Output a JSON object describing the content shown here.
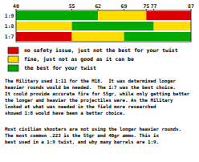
{
  "chart_data": {
    "type": "bar",
    "orientation": "horizontal",
    "categories": [
      "1:9",
      "1:8",
      "1:7"
    ],
    "segments": [
      [
        {
          "start": 40,
          "end": 62,
          "color": "#00aa00"
        },
        {
          "start": 62,
          "end": 75,
          "color": "#ffdd00"
        },
        {
          "start": 75,
          "end": 87,
          "color": "#dd0000"
        }
      ],
      [
        {
          "start": 40,
          "end": 55,
          "color": "#ffdd00"
        },
        {
          "start": 55,
          "end": 77,
          "color": "#00aa00"
        },
        {
          "start": 77,
          "end": 87,
          "color": "#ffdd00"
        }
      ],
      [
        {
          "start": 40,
          "end": 55,
          "color": "#dd0000"
        },
        {
          "start": 55,
          "end": 69,
          "color": "#ffdd00"
        },
        {
          "start": 69,
          "end": 87,
          "color": "#00aa00"
        }
      ]
    ],
    "series": [
      {
        "name": " no safety issue, just not the best for your twist",
        "color": "#dd0000"
      },
      {
        "name": " fine, just not as good as it can be",
        "color": "#ffdd00"
      },
      {
        "name": " the best for your twist",
        "color": "#00aa00"
      }
    ],
    "xlim": [
      40,
      87
    ],
    "xticks": [
      40,
      55,
      62,
      69,
      75,
      77,
      87
    ],
    "grid": false,
    "annotations": [
      [
        "The Military used 1:11 for the M18.  It was determined longer",
        "heavier rounds would be needed.  The 1:7 was the best choice.",
        "It could provide accurate fire for 55gr, while only getting better",
        "the longer and heavier the projectiles were. As the Military",
        "looked at what was needed in the field more researched",
        "showed 1:8 would have been a better choice."
      ],
      [
        "Most civilian shooters are not using the longer heavier rounds.",
        "The most common .223 is the 55gr and 40gr ammo. This is",
        "best used in a 1:9 twist, and why many barrels are 1:9."
      ]
    ]
  }
}
